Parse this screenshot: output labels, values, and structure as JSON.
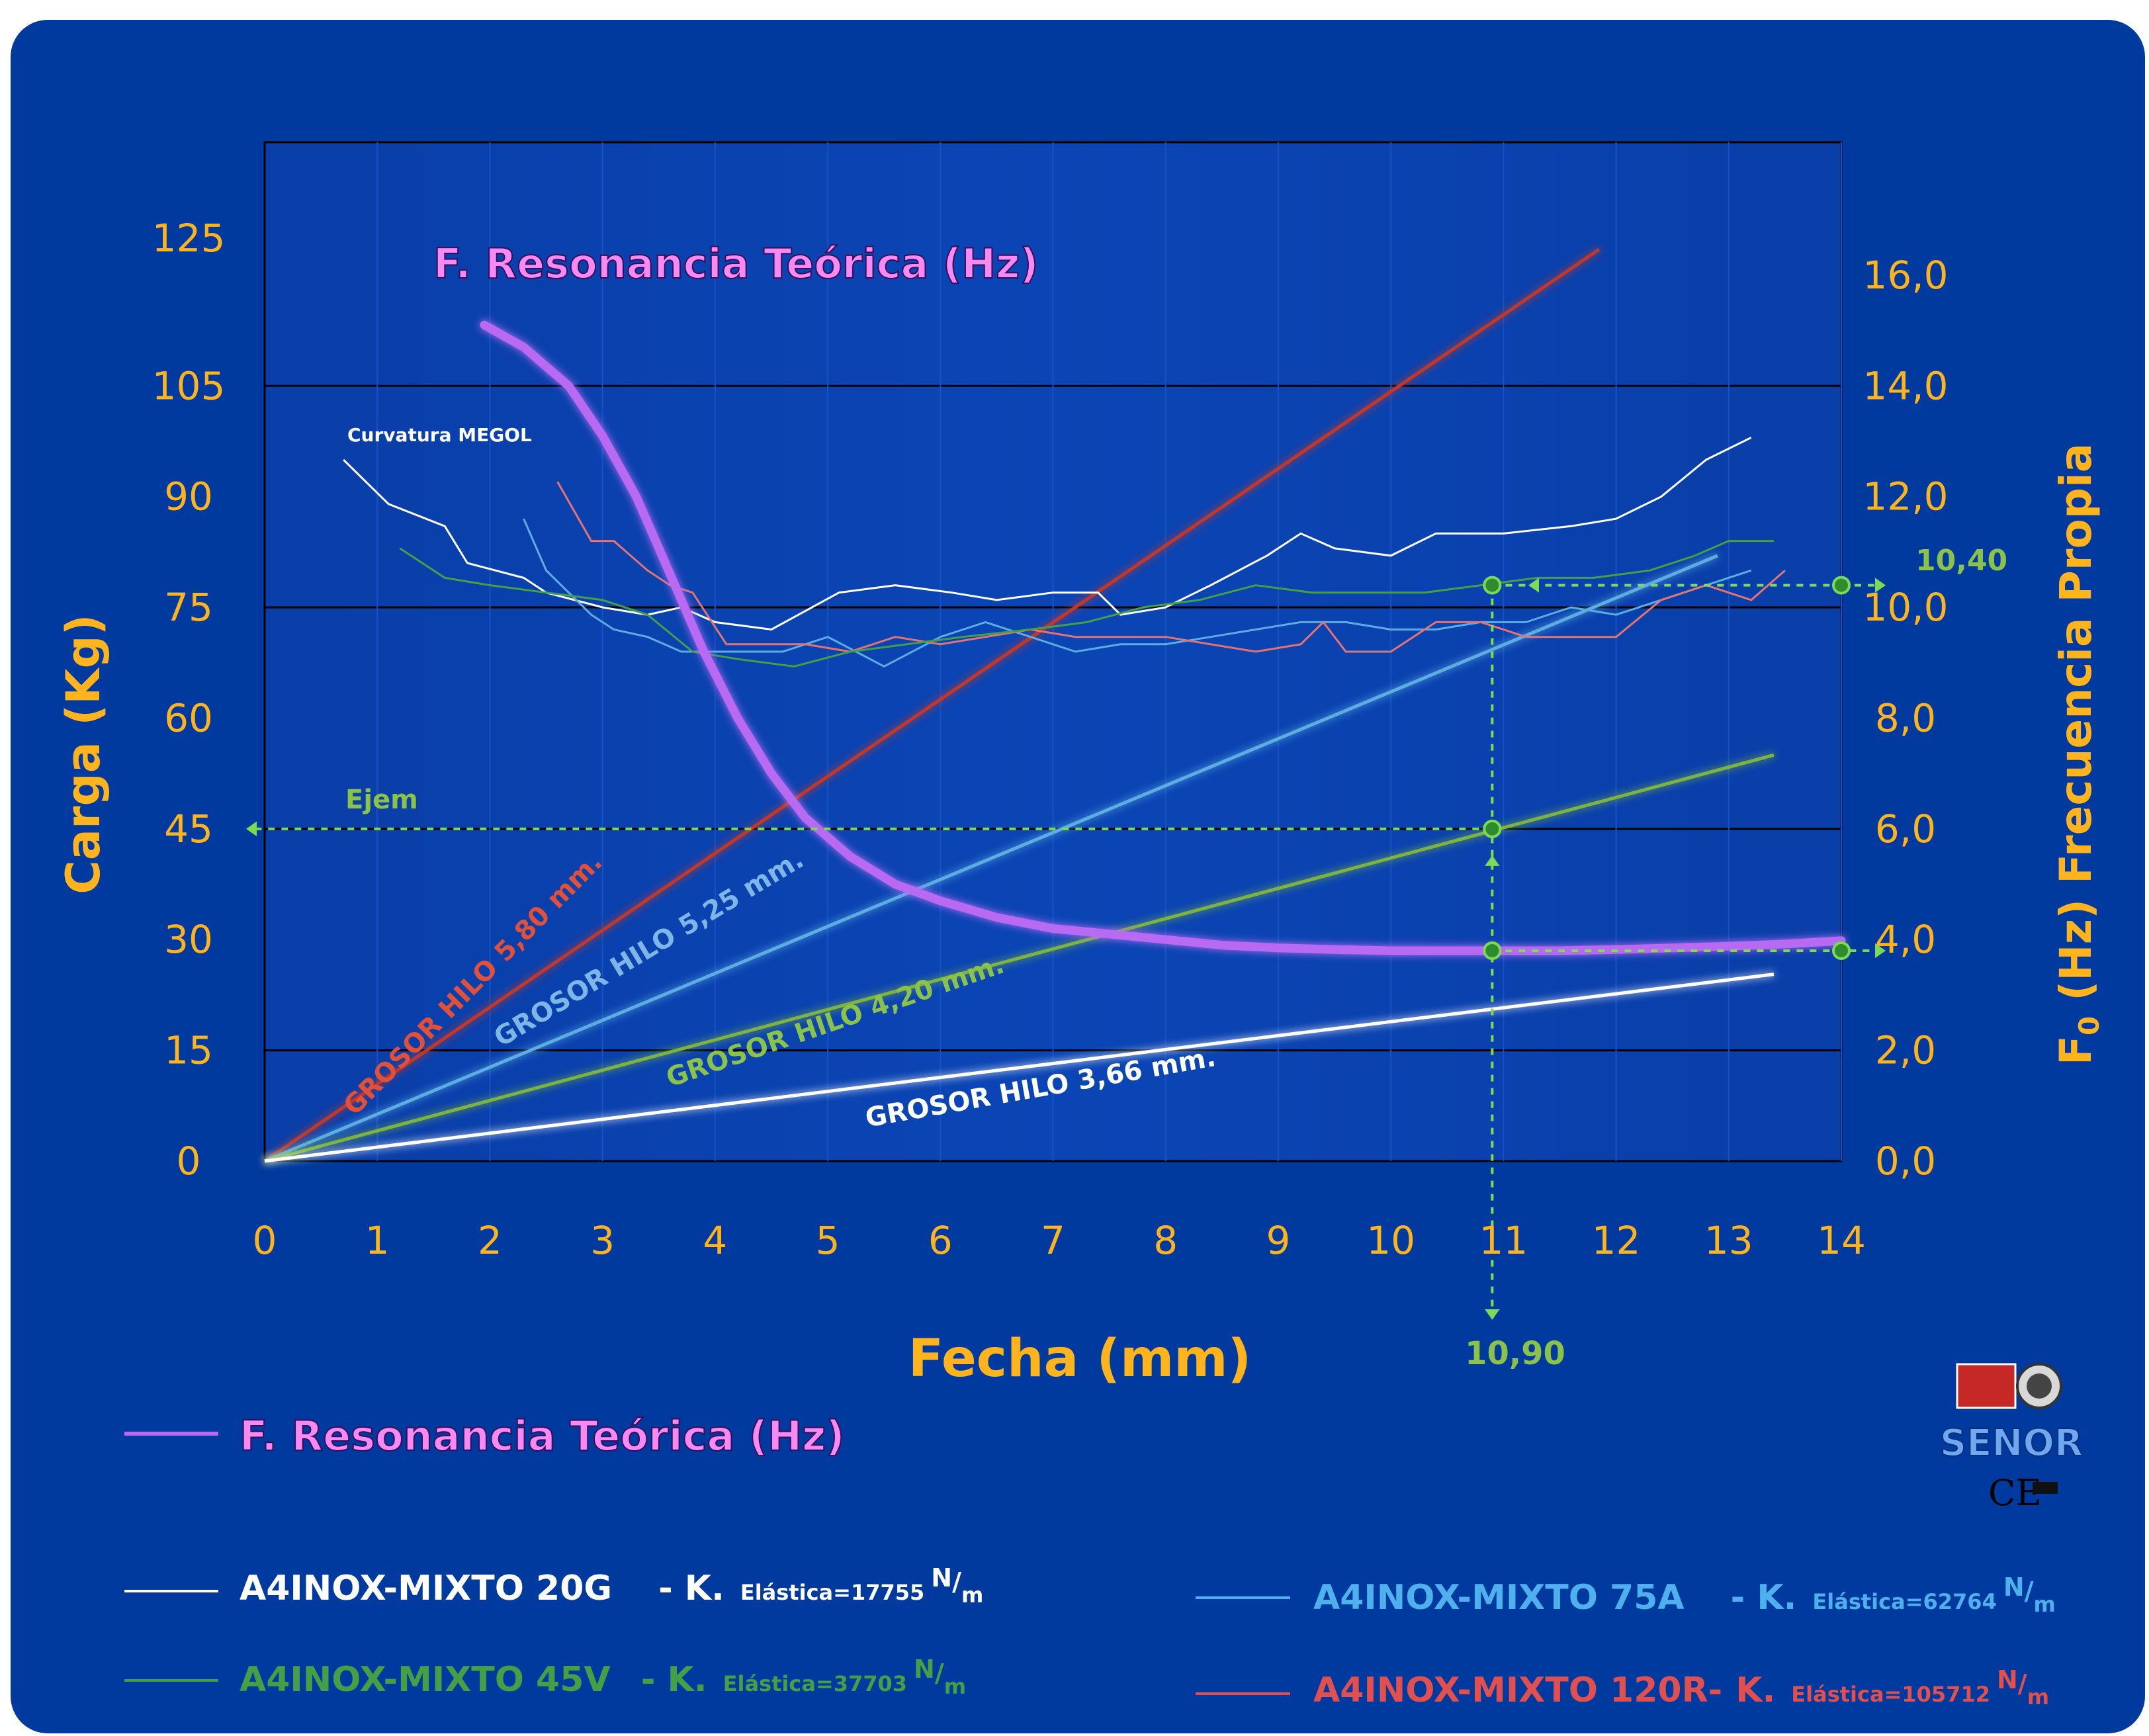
{
  "chart_data": {
    "type": "line",
    "title": "F. Resonancia Teórica (Hz)",
    "xlabel": "Fecha (mm)",
    "ylabel_left": "Carga (Kg)",
    "ylabel_right": "F0 (Hz) Frecuencia Propia",
    "ylabel_right_parts": {
      "F": "F",
      "sub": "0",
      "rest": " (Hz) Frecuencia Propia"
    },
    "x_ticks": [
      "0",
      "1",
      "2",
      "3",
      "4",
      "5",
      "6",
      "7",
      "8",
      "9",
      "10",
      "11",
      "12",
      "13",
      "14"
    ],
    "y_left_ticks": [
      {
        "value": 0,
        "label": "0"
      },
      {
        "value": 15,
        "label": "15"
      },
      {
        "value": 30,
        "label": "30"
      },
      {
        "value": 45,
        "label": "45"
      },
      {
        "value": 60,
        "label": "60"
      },
      {
        "value": 75,
        "label": "75"
      },
      {
        "value": 90,
        "label": "90"
      },
      {
        "value": 105,
        "label": "105"
      },
      {
        "value": 125,
        "label": "125"
      }
    ],
    "y_right_ticks": [
      {
        "value": 0,
        "label": "0,0"
      },
      {
        "value": 2,
        "label": "2,0"
      },
      {
        "value": 4,
        "label": "4,0"
      },
      {
        "value": 6,
        "label": "6,0"
      },
      {
        "value": 8,
        "label": "8,0"
      },
      {
        "value": 10,
        "label": "10,0"
      },
      {
        "value": 12,
        "label": "12,0"
      },
      {
        "value": 14,
        "label": "14,0"
      },
      {
        "value": 16,
        "label": "16,0"
      }
    ],
    "xlim": [
      0,
      14
    ],
    "ylim_left": [
      0,
      138
    ],
    "ylim_right": [
      0,
      18.4
    ],
    "grid_lines_left": [
      15,
      45,
      75,
      105
    ],
    "stiffness_lines": [
      {
        "label": "GROSOR HILO 5,80 mm.",
        "color": "#C0392B",
        "x": [
          0,
          11.85
        ],
        "y": [
          0,
          123.5
        ],
        "label_at": [
          0.8,
          6
        ],
        "label_angle": -45.5,
        "label_color": "#E0503A"
      },
      {
        "label": "GROSOR HILO 5,25 mm.",
        "color": "#5DADE2",
        "x": [
          0,
          12.9
        ],
        "y": [
          0,
          82
        ],
        "label_at": [
          2.1,
          15.4
        ],
        "label_angle": -31,
        "label_color": "#7FB6E8"
      },
      {
        "label": "GROSOR HILO 4,20 mm.",
        "color": "#7CB342",
        "x": [
          0,
          13.4
        ],
        "y": [
          0,
          55
        ],
        "label_at": [
          3.6,
          10
        ],
        "label_angle": -19,
        "label_color": "#8BC34A"
      },
      {
        "label": "GROSOR HILO 3,66 mm.",
        "color": "#FFFFFF",
        "x": [
          0,
          13.4
        ],
        "y": [
          0,
          25.3
        ],
        "label_at": [
          5.35,
          4.6
        ],
        "label_angle": -10,
        "label_color": "#FFFFFF"
      }
    ],
    "curvature_series": [
      {
        "name": "A4INOX-MIXTO 20G",
        "color": "#FFFFFF",
        "x": [
          0.7,
          1.1,
          1.6,
          1.8,
          2.3,
          2.5,
          3.0,
          3.4,
          3.7,
          4.0,
          4.5,
          5.1,
          5.6,
          6.1,
          6.5,
          7.0,
          7.4,
          7.6,
          8.0,
          8.4,
          8.9,
          9.2,
          9.5,
          10.0,
          10.4,
          11.0,
          11.6,
          12.0,
          12.4,
          12.8,
          13.2
        ],
        "y": [
          95,
          89,
          86,
          81,
          79,
          77,
          75,
          74,
          75,
          73,
          72,
          77,
          78,
          77,
          76,
          77,
          77,
          74,
          75,
          78,
          82,
          85,
          83,
          82,
          85,
          85,
          86,
          87,
          90,
          95,
          98
        ]
      },
      {
        "name": "A4INOX-MIXTO 75A",
        "color": "#5DADE2",
        "x": [
          2.3,
          2.5,
          2.9,
          3.1,
          3.4,
          3.7,
          4.1,
          4.6,
          5.0,
          5.5,
          6.0,
          6.4,
          6.8,
          7.2,
          7.6,
          8.0,
          8.4,
          8.8,
          9.2,
          9.6,
          10.0,
          10.4,
          10.8,
          11.2,
          11.6,
          12.0,
          12.4,
          12.8,
          13.2
        ],
        "y": [
          87,
          80,
          74,
          72,
          71,
          69,
          69,
          69,
          71,
          67,
          71,
          73,
          71,
          69,
          70,
          70,
          71,
          72,
          73,
          73,
          72,
          72,
          73,
          73,
          75,
          74,
          76,
          78,
          80
        ]
      },
      {
        "name": "A4INOX-MIXTO 120R",
        "color": "#E57373",
        "x": [
          2.6,
          2.9,
          3.1,
          3.4,
          3.6,
          3.8,
          4.1,
          4.4,
          4.8,
          5.2,
          5.6,
          6.0,
          6.4,
          6.8,
          7.2,
          7.6,
          8.0,
          8.4,
          8.8,
          9.2,
          9.4,
          9.6,
          10.0,
          10.4,
          10.8,
          11.2,
          11.6,
          12.0,
          12.4,
          12.8,
          13.2,
          13.5
        ],
        "y": [
          92,
          84,
          84,
          80,
          78,
          77,
          70,
          70,
          70,
          69,
          71,
          70,
          71,
          72,
          71,
          71,
          71,
          70,
          69,
          70,
          73,
          69,
          69,
          73,
          73,
          71,
          71,
          71,
          76,
          78,
          76,
          80
        ]
      },
      {
        "name": "A4INOX-MIXTO 45V",
        "color": "#43A047",
        "x": [
          1.2,
          1.6,
          2.0,
          2.5,
          3.0,
          3.4,
          3.8,
          4.2,
          4.7,
          5.2,
          5.7,
          6.2,
          6.8,
          7.3,
          7.8,
          8.3,
          8.8,
          9.3,
          9.8,
          10.3,
          10.8,
          11.3,
          11.8,
          12.3,
          12.7,
          13.0,
          13.4
        ],
        "y": [
          83,
          79,
          78,
          77,
          76,
          74,
          69,
          68,
          67,
          69,
          70,
          71,
          72,
          73,
          75,
          76,
          78,
          77,
          77,
          77,
          78,
          79,
          79,
          80,
          82,
          84,
          84
        ]
      }
    ],
    "resonance_curve": {
      "name": "F. Resonancia Teórica (Hz)",
      "color": "#B86BF2",
      "x": [
        1.95,
        2.3,
        2.7,
        3.0,
        3.3,
        3.6,
        3.9,
        4.2,
        4.5,
        4.8,
        5.2,
        5.6,
        6.0,
        6.5,
        7.0,
        7.5,
        8.0,
        8.5,
        9.0,
        9.5,
        10.0,
        10.5,
        10.9,
        11.5,
        12.0,
        12.5,
        13.0,
        13.5,
        14.0
      ],
      "y": [
        15.1,
        14.7,
        14.0,
        13.1,
        12.0,
        10.6,
        9.2,
        8.0,
        7.0,
        6.2,
        5.5,
        5.0,
        4.7,
        4.4,
        4.2,
        4.1,
        4.0,
        3.9,
        3.85,
        3.82,
        3.8,
        3.8,
        3.8,
        3.8,
        3.82,
        3.85,
        3.88,
        3.92,
        3.98
      ]
    },
    "annotations": {
      "ejemplo_label": "Ejem",
      "curvatura_label": "Curvatura MEGOL",
      "x_read_value": "10,90",
      "freq_read_value": "10,40",
      "x_read": 10.9,
      "load_read": 45,
      "freq_read": 10.4,
      "res_read": 3.8
    },
    "legend": [
      {
        "name": "F. Resonancia Teórica (Hz)",
        "color": "#B86BF2"
      },
      {
        "name": "A4INOX-MIXTO 20G",
        "k_text": "- K.",
        "elastic": "Elástica=17755",
        "unit_sup": "N",
        "unit_sub": "m",
        "color": "#FFFFFF"
      },
      {
        "name": "A4INOX-MIXTO 75A",
        "k_text": "- K.",
        "elastic": "Elástica=62764",
        "unit_sup": "N",
        "unit_sub": "m",
        "color": "#4FB0EE"
      },
      {
        "name": "A4INOX-MIXTO 45V",
        "k_text": "- K.",
        "elastic": "Elástica=37703",
        "unit_sup": "N",
        "unit_sub": "m",
        "color": "#43A047"
      },
      {
        "name": "A4INOX-MIXTO 120R-",
        "k_text": "K.",
        "elastic": "Elástica=105712",
        "unit_sup": "N",
        "unit_sub": "m",
        "color": "#E05050"
      }
    ]
  },
  "brand": {
    "name": "SENOR",
    "ce": "CE"
  }
}
